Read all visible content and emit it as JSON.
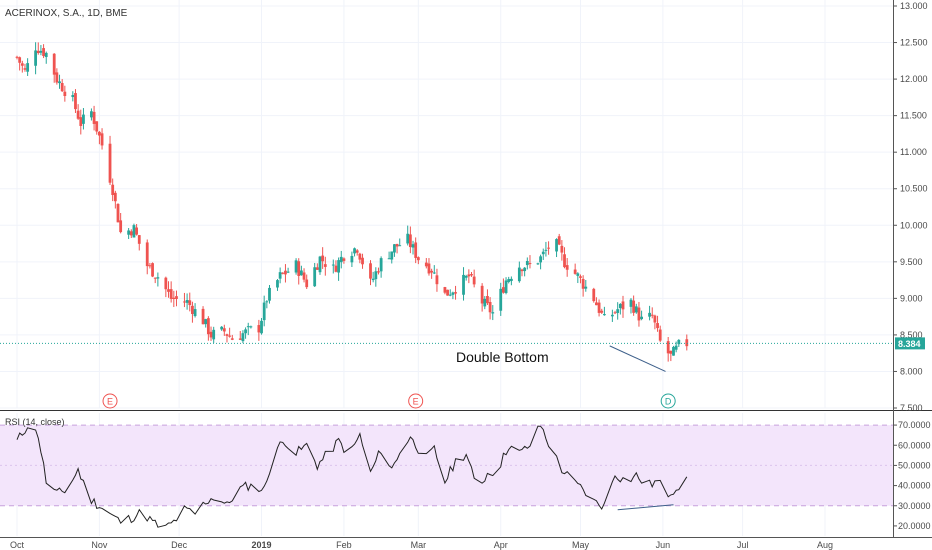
{
  "colors": {
    "up": "#26a69a",
    "down": "#ef5350",
    "last_price_line": "#26a69a",
    "grid": "#f0f3fa",
    "axis_text": "#4a4a4a",
    "rsi_band_fill": "#f3e5fb",
    "rsi_band_border": "#c8a2dc",
    "rsi_line": "#222222",
    "event_circle": "#ef5350",
    "dividend_circle": "#26a69a",
    "trendline": "#3d5f8a"
  },
  "chart_data": [
    {
      "type": "candlestick",
      "title": "ACERINOX, S.A., 1D, BME",
      "ylim": [
        7.5,
        13.0
      ],
      "yticks": [
        "7.500",
        "8.000",
        "8.500",
        "9.000",
        "9.500",
        "10.000",
        "10.500",
        "11.000",
        "11.500",
        "12.000",
        "12.500",
        "13.000"
      ],
      "last_price": "8.384",
      "x_start": "2018-10-01",
      "x_end": "2019-08-31",
      "close_points": [
        [
          "2018-10-01",
          12.3
        ],
        [
          "2018-10-04",
          12.1
        ],
        [
          "2018-10-08",
          12.45
        ],
        [
          "2018-10-12",
          12.35
        ],
        [
          "2018-10-16",
          12.0
        ],
        [
          "2018-10-19",
          11.85
        ],
        [
          "2018-10-22",
          11.7
        ],
        [
          "2018-10-25",
          11.4
        ],
        [
          "2018-10-29",
          11.55
        ],
        [
          "2018-11-02",
          11.1
        ],
        [
          "2018-11-06",
          10.5
        ],
        [
          "2018-11-09",
          9.9
        ],
        [
          "2018-11-14",
          9.95
        ],
        [
          "2018-11-19",
          9.45
        ],
        [
          "2018-11-23",
          9.3
        ],
        [
          "2018-11-28",
          9.0
        ],
        [
          "2018-12-04",
          8.95
        ],
        [
          "2018-12-10",
          8.7
        ],
        [
          "2018-12-13",
          8.5
        ],
        [
          "2018-12-18",
          8.55
        ],
        [
          "2018-12-21",
          8.45
        ],
        [
          "2018-12-27",
          8.55
        ],
        [
          "2018-12-31",
          8.6
        ],
        [
          "2019-01-03",
          9.0
        ],
        [
          "2019-01-08",
          9.3
        ],
        [
          "2019-01-14",
          9.45
        ],
        [
          "2019-01-18",
          9.2
        ],
        [
          "2019-01-23",
          9.55
        ],
        [
          "2019-01-28",
          9.4
        ],
        [
          "2019-02-01",
          9.6
        ],
        [
          "2019-02-06",
          9.7
        ],
        [
          "2019-02-11",
          9.2
        ],
        [
          "2019-02-15",
          9.5
        ],
        [
          "2019-02-20",
          9.7
        ],
        [
          "2019-02-25",
          9.8
        ],
        [
          "2019-03-01",
          9.55
        ],
        [
          "2019-03-06",
          9.4
        ],
        [
          "2019-03-11",
          9.05
        ],
        [
          "2019-03-15",
          9.15
        ],
        [
          "2019-03-20",
          9.3
        ],
        [
          "2019-03-25",
          8.95
        ],
        [
          "2019-03-29",
          8.8
        ],
        [
          "2019-04-03",
          9.25
        ],
        [
          "2019-04-08",
          9.45
        ],
        [
          "2019-04-12",
          9.45
        ],
        [
          "2019-04-16",
          9.55
        ],
        [
          "2019-04-21",
          9.8
        ],
        [
          "2019-04-25",
          9.5
        ],
        [
          "2019-04-30",
          9.3
        ],
        [
          "2019-05-06",
          9.0
        ],
        [
          "2019-05-10",
          8.7
        ],
        [
          "2019-05-15",
          8.85
        ],
        [
          "2019-05-20",
          8.95
        ],
        [
          "2019-05-24",
          8.7
        ],
        [
          "2019-05-28",
          8.75
        ],
        [
          "2019-05-31",
          8.4
        ],
        [
          "2019-06-04",
          8.2
        ],
        [
          "2019-06-07",
          8.35
        ],
        [
          "2019-06-10",
          8.384
        ]
      ],
      "annotation": "Double Bottom",
      "trendline": [
        [
          "2019-05-12",
          8.35
        ],
        [
          "2019-06-02",
          8.0
        ]
      ],
      "events": [
        {
          "label": "E",
          "date": "2018-11-05",
          "kind": "earnings"
        },
        {
          "label": "E",
          "date": "2019-02-28",
          "kind": "earnings"
        },
        {
          "label": "D",
          "date": "2019-06-03",
          "kind": "dividend"
        }
      ]
    },
    {
      "type": "line",
      "title": "RSI (14, close)",
      "ylim": [
        15,
        75
      ],
      "yticks": [
        "20.0000",
        "30.0000",
        "40.0000",
        "50.0000",
        "60.0000",
        "70.0000"
      ],
      "band": [
        30,
        70
      ],
      "rsi_points": [
        [
          "2018-10-01",
          62
        ],
        [
          "2018-10-05",
          70
        ],
        [
          "2018-10-09",
          65
        ],
        [
          "2018-10-12",
          42
        ],
        [
          "2018-10-16",
          36
        ],
        [
          "2018-10-20",
          38
        ],
        [
          "2018-10-24",
          48
        ],
        [
          "2018-10-28",
          34
        ],
        [
          "2018-11-01",
          30
        ],
        [
          "2018-11-05",
          26
        ],
        [
          "2018-11-09",
          22
        ],
        [
          "2018-11-13",
          24
        ],
        [
          "2018-11-17",
          27
        ],
        [
          "2018-11-21",
          22
        ],
        [
          "2018-11-25",
          18
        ],
        [
          "2018-11-29",
          22
        ],
        [
          "2018-12-03",
          28
        ],
        [
          "2018-12-07",
          26
        ],
        [
          "2018-12-11",
          32
        ],
        [
          "2018-12-15",
          35
        ],
        [
          "2018-12-19",
          30
        ],
        [
          "2018-12-23",
          38
        ],
        [
          "2018-12-27",
          40
        ],
        [
          "2019-01-02",
          38
        ],
        [
          "2019-01-06",
          58
        ],
        [
          "2019-01-10",
          62
        ],
        [
          "2019-01-14",
          56
        ],
        [
          "2019-01-18",
          60
        ],
        [
          "2019-01-22",
          50
        ],
        [
          "2019-01-26",
          56
        ],
        [
          "2019-01-30",
          62
        ],
        [
          "2019-02-03",
          55
        ],
        [
          "2019-02-07",
          65
        ],
        [
          "2019-02-11",
          46
        ],
        [
          "2019-02-15",
          58
        ],
        [
          "2019-02-19",
          48
        ],
        [
          "2019-02-23",
          60
        ],
        [
          "2019-02-27",
          64
        ],
        [
          "2019-03-03",
          52
        ],
        [
          "2019-03-07",
          58
        ],
        [
          "2019-03-11",
          42
        ],
        [
          "2019-03-15",
          52
        ],
        [
          "2019-03-19",
          56
        ],
        [
          "2019-03-23",
          38
        ],
        [
          "2019-03-27",
          46
        ],
        [
          "2019-03-31",
          48
        ],
        [
          "2019-04-04",
          60
        ],
        [
          "2019-04-08",
          56
        ],
        [
          "2019-04-12",
          60
        ],
        [
          "2019-04-16",
          70
        ],
        [
          "2019-04-20",
          58
        ],
        [
          "2019-04-24",
          48
        ],
        [
          "2019-04-28",
          42
        ],
        [
          "2019-05-02",
          38
        ],
        [
          "2019-05-06",
          32
        ],
        [
          "2019-05-10",
          30
        ],
        [
          "2019-05-14",
          46
        ],
        [
          "2019-05-18",
          42
        ],
        [
          "2019-05-22",
          45
        ],
        [
          "2019-05-26",
          40
        ],
        [
          "2019-05-30",
          42
        ],
        [
          "2019-06-03",
          36
        ],
        [
          "2019-06-07",
          40
        ],
        [
          "2019-06-10",
          42
        ]
      ],
      "trendline": [
        [
          "2019-05-15",
          28
        ],
        [
          "2019-06-05",
          30.5
        ]
      ]
    }
  ],
  "x_axis": {
    "ticks": [
      {
        "label": "Oct",
        "date": "2018-10-01",
        "bold": false
      },
      {
        "label": "Nov",
        "date": "2018-11-01",
        "bold": false
      },
      {
        "label": "Dec",
        "date": "2018-12-01",
        "bold": false
      },
      {
        "label": "2019",
        "date": "2019-01-01",
        "bold": true
      },
      {
        "label": "Feb",
        "date": "2019-02-01",
        "bold": false
      },
      {
        "label": "Mar",
        "date": "2019-03-01",
        "bold": false
      },
      {
        "label": "Apr",
        "date": "2019-04-01",
        "bold": false
      },
      {
        "label": "May",
        "date": "2019-05-01",
        "bold": false
      },
      {
        "label": "Jun",
        "date": "2019-06-01",
        "bold": false
      },
      {
        "label": "Jul",
        "date": "2019-07-01",
        "bold": false
      },
      {
        "label": "Aug",
        "date": "2019-08-01",
        "bold": false
      }
    ]
  }
}
